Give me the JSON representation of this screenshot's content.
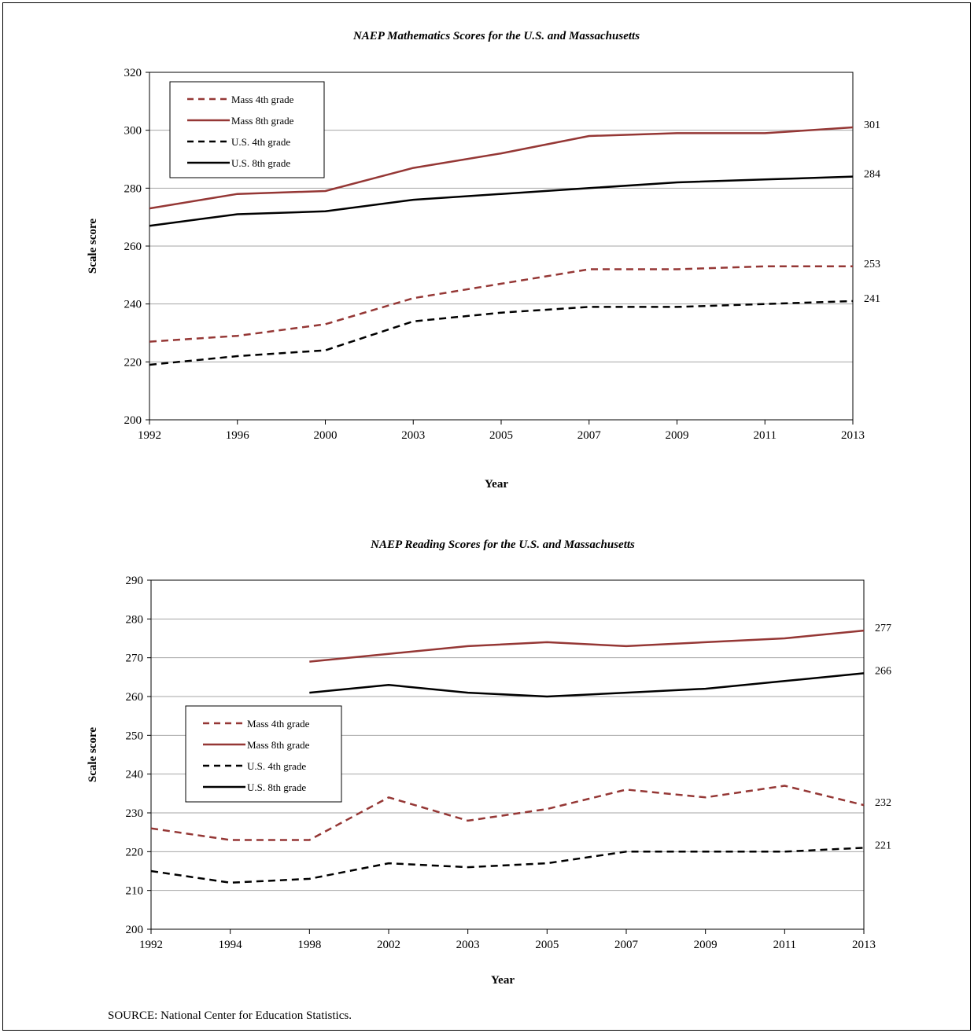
{
  "colors": {
    "mass": "#953735",
    "us": "#000000",
    "grid": "#a6a6a6"
  },
  "source": "SOURCE:  National Center for Education Statistics.",
  "chart_data": [
    {
      "type": "line",
      "title": "NAEP Mathematics Scores for the U.S. and Massachusetts",
      "xlabel": "Year",
      "ylabel": "Scale score",
      "categories": [
        "1992",
        "1996",
        "2000",
        "2003",
        "2005",
        "2007",
        "2009",
        "2011",
        "2013"
      ],
      "ylim": [
        200,
        320
      ],
      "yticks": [
        200,
        220,
        240,
        260,
        280,
        300,
        320
      ],
      "grid": true,
      "legend": "top-left",
      "series": [
        {
          "name": "Mass 4th grade",
          "color": "#953735",
          "dash": true,
          "values": [
            227,
            229,
            233,
            242,
            247,
            252,
            252,
            253,
            253
          ],
          "end_label": "253"
        },
        {
          "name": "Mass 8th grade",
          "color": "#953735",
          "dash": false,
          "values": [
            273,
            278,
            279,
            287,
            292,
            298,
            299,
            299,
            301
          ],
          "end_label": "301"
        },
        {
          "name": "U.S. 4th grade",
          "color": "#000000",
          "dash": true,
          "values": [
            219,
            222,
            224,
            234,
            237,
            239,
            239,
            240,
            241
          ],
          "end_label": "241"
        },
        {
          "name": "U.S. 8th grade",
          "color": "#000000",
          "dash": false,
          "values": [
            267,
            271,
            272,
            276,
            278,
            280,
            282,
            283,
            284
          ],
          "end_label": "284"
        }
      ]
    },
    {
      "type": "line",
      "title": "NAEP Reading Scores for the U.S. and Massachusetts",
      "xlabel": "Year",
      "ylabel": "Scale score",
      "categories": [
        "1992",
        "1994",
        "1998",
        "2002",
        "2003",
        "2005",
        "2007",
        "2009",
        "2011",
        "2013"
      ],
      "ylim": [
        200,
        290
      ],
      "yticks": [
        200,
        210,
        220,
        230,
        240,
        250,
        260,
        270,
        280,
        290
      ],
      "grid": true,
      "legend": "middle-left",
      "series": [
        {
          "name": "Mass 4th grade",
          "color": "#953735",
          "dash": true,
          "values": [
            226,
            223,
            223,
            234,
            228,
            231,
            236,
            234,
            237,
            232
          ],
          "end_label": "232"
        },
        {
          "name": "Mass 8th grade",
          "color": "#953735",
          "dash": false,
          "values": [
            null,
            null,
            269,
            271,
            273,
            274,
            273,
            274,
            275,
            277
          ],
          "end_label": "277"
        },
        {
          "name": "U.S. 4th grade",
          "color": "#000000",
          "dash": true,
          "values": [
            215,
            212,
            213,
            217,
            216,
            217,
            220,
            220,
            220,
            221
          ],
          "end_label": "221"
        },
        {
          "name": "U.S. 8th grade",
          "color": "#000000",
          "dash": false,
          "values": [
            null,
            null,
            261,
            263,
            261,
            260,
            261,
            262,
            264,
            266
          ],
          "end_label": "266"
        }
      ]
    }
  ]
}
